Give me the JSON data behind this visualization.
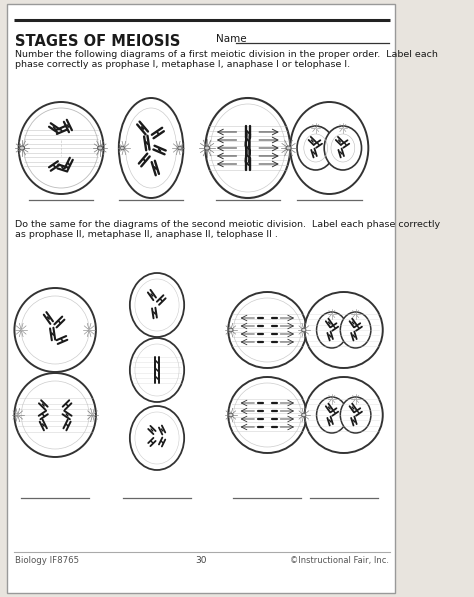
{
  "title": "STAGES OF MEIOSIS",
  "name_label": "Name",
  "instruction1": "Number the following diagrams of a first meiotic division in the proper order.  Label each\nphase correctly as prophase I, metaphase I, anaphase I or telophase I.",
  "instruction2": "Do the same for the diagrams of the second meiotic division.  Label each phase correctly\nas prophase II, metaphase II, anaphase II, telophase II .",
  "footer_left": "Biology IF8765",
  "footer_center": "30",
  "footer_right": "©Instructional Fair, Inc.",
  "bg_color": "#e8e4de",
  "page_bg": "#ffffff",
  "border_color": "#999999",
  "text_color": "#1a1a1a",
  "line_color": "#555555",
  "cell_edge": "#333333",
  "chrom_color": "#1a1a1a",
  "spindle_color": "#888888",
  "aster_color": "#666666"
}
